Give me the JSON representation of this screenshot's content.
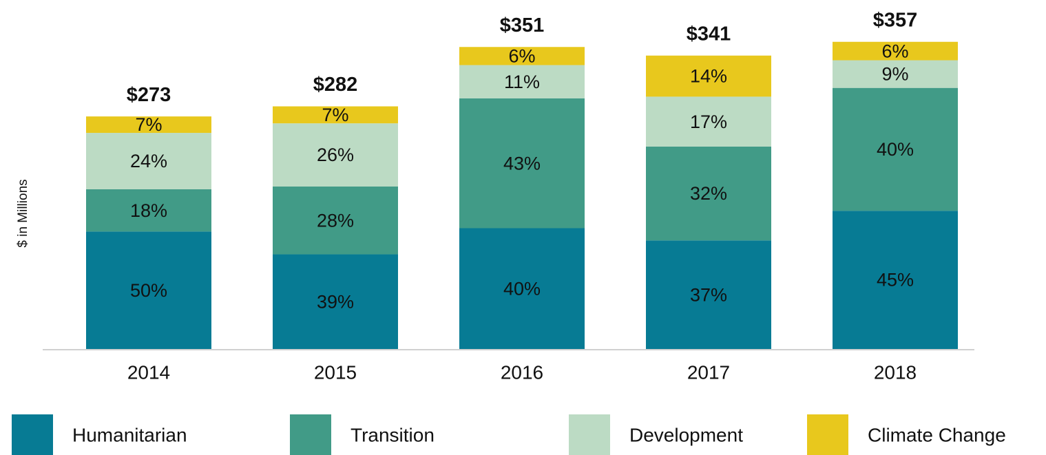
{
  "chart_data": {
    "type": "stacked_bar",
    "y_label": "$ in Millions",
    "categories": [
      "2014",
      "2015",
      "2016",
      "2017",
      "2018"
    ],
    "ylim": [
      0,
      400
    ],
    "totals": {
      "values": [
        273,
        282,
        351,
        341,
        357
      ],
      "value_labels": [
        "$273",
        "$282",
        "$351",
        "$341",
        "$357"
      ]
    },
    "series": [
      {
        "name": "Humanitarian",
        "color": "#077b94",
        "values": [
          50,
          39,
          40,
          37,
          45
        ],
        "value_labels": [
          "50%",
          "39%",
          "40%",
          "37%",
          "45%"
        ]
      },
      {
        "name": "Transition",
        "color": "#419b87",
        "values": [
          18,
          28,
          43,
          32,
          40
        ],
        "value_labels": [
          "18%",
          "28%",
          "43%",
          "32%",
          "40%"
        ]
      },
      {
        "name": "Development",
        "color": "#bcdbc4",
        "values": [
          24,
          26,
          11,
          17,
          9
        ],
        "value_labels": [
          "24%",
          "26%",
          "11%",
          "17%",
          "9%"
        ]
      },
      {
        "name": "Climate Change",
        "color": "#e8c81d",
        "values": [
          7,
          7,
          6,
          14,
          6
        ],
        "value_labels": [
          "7%",
          "7%",
          "6%",
          "14%",
          "6%"
        ]
      }
    ]
  }
}
